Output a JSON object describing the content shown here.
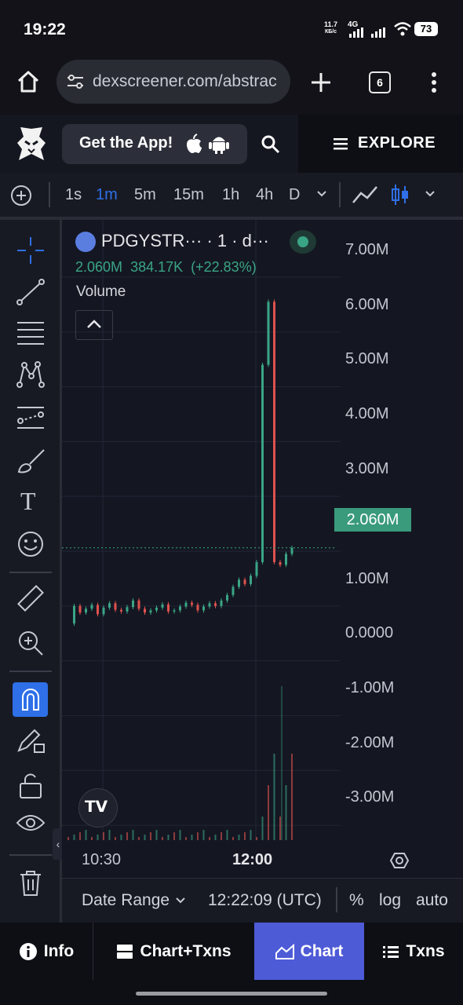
{
  "status_bar": {
    "time": "19:22",
    "net_speed": "11.7",
    "net_unit": "КБ/с",
    "net_type": "4G",
    "battery": "73"
  },
  "browser": {
    "url": "dexscreener.com/abstrac",
    "tab_count": "6"
  },
  "header": {
    "get_app_label": "Get the App!",
    "explore_label": "EXPLORE"
  },
  "toolbar": {
    "timeframes": [
      "1s",
      "1m",
      "5m",
      "15m",
      "1h",
      "4h",
      "D"
    ],
    "active_timeframe": "1m"
  },
  "chart": {
    "symbol": "PDGYSTR··· · 1 · d···",
    "open_value": "2.060M",
    "change_abs": "384.17K",
    "change_pct": "(+22.83%)",
    "volume_label": "Volume",
    "y_axis_labels": [
      "7.00M",
      "6.00M",
      "5.00M",
      "4.00M",
      "3.00M",
      "2.00M",
      "1.00M",
      "0.0000",
      "-1.00M",
      "-2.00M",
      "-3.00M"
    ],
    "current_price_label": "2.060M",
    "x_axis_labels": [
      "10:30",
      "12:00"
    ],
    "colors": {
      "up": "#3aa585",
      "down": "#e0524e",
      "accent": "#2f6fe8"
    }
  },
  "chart_data": {
    "type": "line",
    "title": "",
    "series": [
      {
        "values": [
          0.68,
          1.0,
          0.88,
          0.95,
          1.02,
          0.85,
          0.97,
          1.05,
          0.93,
          0.9,
          0.98,
          1.1,
          0.95,
          0.88,
          0.92,
          0.97,
          1.03,
          0.9,
          0.92,
          0.99,
          1.06,
          1.02,
          0.92,
          0.99,
          1.05,
          1.0,
          1.1,
          1.2,
          1.35,
          1.48,
          1.4,
          1.55,
          1.8,
          5.4,
          6.55,
          1.8,
          1.75,
          1.95,
          2.06
        ]
      }
    ],
    "ylim": [
      -3.5,
      7.5
    ],
    "current_price": 2.06,
    "volume_peak_relative": 1.0
  },
  "range_bar": {
    "date_range": "Date Range",
    "timestamp": "12:22:09 (UTC)",
    "percent": "%",
    "log": "log",
    "auto": "auto"
  },
  "bottom_tabs": {
    "info": "Info",
    "chart_txns": "Chart+Txns",
    "chart": "Chart",
    "txns": "Txns"
  }
}
